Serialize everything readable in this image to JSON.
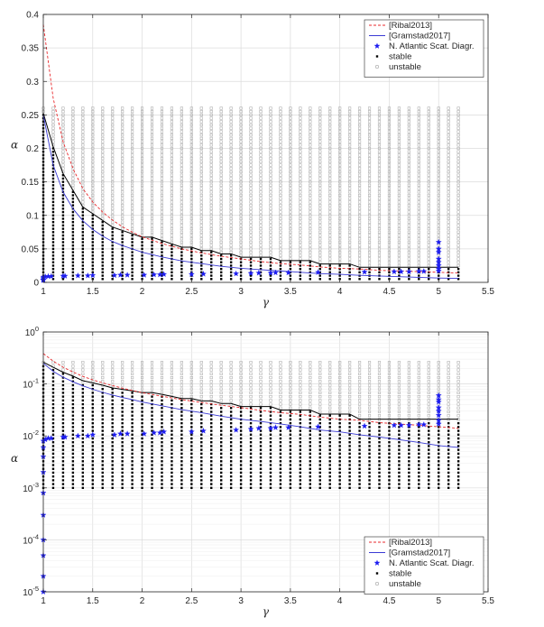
{
  "chart_data": [
    {
      "type": "scatter",
      "title": "",
      "xlabel": "γ",
      "ylabel": "α",
      "xlim": [
        1,
        5.5
      ],
      "ylim": [
        0,
        0.4
      ],
      "yscale": "linear",
      "grid": true,
      "legend_position": "top-right",
      "xticks": [
        "1",
        "1.5",
        "2",
        "2.5",
        "3",
        "3.5",
        "4",
        "4.5",
        "5",
        "5.5"
      ],
      "yticks": [
        "0",
        "0.05",
        "0.1",
        "0.15",
        "0.2",
        "0.25",
        "0.3",
        "0.35",
        "0.4"
      ],
      "grid_gamma": [
        1,
        1.1,
        1.2,
        1.3,
        1.4,
        1.5,
        1.6,
        1.7,
        1.8,
        1.9,
        2,
        2.1,
        2.2,
        2.3,
        2.4,
        2.5,
        2.6,
        2.7,
        2.8,
        2.9,
        3,
        3.1,
        3.2,
        3.3,
        3.4,
        3.5,
        3.6,
        3.7,
        3.8,
        3.9,
        4,
        4.1,
        4.2,
        4.3,
        4.4,
        4.5,
        4.6,
        4.7,
        4.8,
        4.9,
        5,
        5.1,
        5.2
      ],
      "grid_alpha_max": 0.26,
      "stability_boundary": [
        0.25,
        0.2,
        0.16,
        0.135,
        0.11,
        0.1,
        0.09,
        0.08,
        0.075,
        0.07,
        0.065,
        0.065,
        0.06,
        0.055,
        0.05,
        0.05,
        0.045,
        0.045,
        0.04,
        0.04,
        0.035,
        0.035,
        0.035,
        0.035,
        0.03,
        0.03,
        0.03,
        0.03,
        0.025,
        0.025,
        0.025,
        0.025,
        0.02,
        0.02,
        0.02,
        0.02,
        0.02,
        0.02,
        0.02,
        0.02,
        0.02,
        0.02,
        0.02
      ],
      "series": [
        {
          "name": "[Ribal2013]",
          "color": "#e8292c",
          "style": "dashed",
          "x": [
            1,
            1.1,
            1.2,
            1.3,
            1.4,
            1.5,
            1.6,
            1.7,
            1.8,
            1.9,
            2,
            2.2,
            2.4,
            2.6,
            2.8,
            3,
            3.2,
            3.4,
            3.6,
            3.8,
            4,
            4.2,
            4.4,
            4.6,
            4.8,
            5,
            5.2
          ],
          "y": [
            0.385,
            0.275,
            0.21,
            0.17,
            0.14,
            0.12,
            0.105,
            0.093,
            0.083,
            0.075,
            0.068,
            0.058,
            0.05,
            0.044,
            0.039,
            0.035,
            0.031,
            0.028,
            0.026,
            0.023,
            0.021,
            0.02,
            0.018,
            0.017,
            0.016,
            0.015,
            0.014
          ]
        },
        {
          "name": "[Gramstad2017]",
          "color": "#3a3ad4",
          "style": "solid",
          "x": [
            1,
            1.1,
            1.2,
            1.3,
            1.4,
            1.5,
            1.6,
            1.7,
            1.8,
            1.9,
            2,
            2.2,
            2.4,
            2.6,
            2.8,
            3,
            3.2,
            3.4,
            3.6,
            3.8,
            4,
            4.2,
            4.4,
            4.6,
            4.8,
            5,
            5.2
          ],
          "y": [
            0.25,
            0.175,
            0.135,
            0.11,
            0.092,
            0.079,
            0.069,
            0.061,
            0.055,
            0.05,
            0.045,
            0.038,
            0.032,
            0.028,
            0.024,
            0.021,
            0.019,
            0.017,
            0.015,
            0.013,
            0.012,
            0.0105,
            0.0095,
            0.0085,
            0.0075,
            0.0065,
            0.006
          ]
        },
        {
          "name": "N. Atlantic Scat. Diagr.",
          "color": "#1c1cf0",
          "marker": "star",
          "x": [
            1,
            1,
            1,
            1,
            1,
            1,
            1,
            1,
            1,
            1,
            1.02,
            1.05,
            1.08,
            1.2,
            1.22,
            1.35,
            1.45,
            1.5,
            1.72,
            1.78,
            1.85,
            2.02,
            2.12,
            2.18,
            2.22,
            2.5,
            2.62,
            2.95,
            3.1,
            3.18,
            3.3,
            3.35,
            3.48,
            3.78,
            4.25,
            4.55,
            4.62,
            4.7,
            4.8,
            4.85,
            5,
            5,
            5,
            5,
            5,
            5,
            5,
            5
          ],
          "y": [
            1e-05,
            2e-05,
            5e-05,
            0.0001,
            0.0003,
            0.0008,
            0.002,
            0.004,
            0.006,
            0.008,
            0.0085,
            0.009,
            0.009,
            0.0095,
            0.0095,
            0.01,
            0.01,
            0.0105,
            0.0105,
            0.011,
            0.011,
            0.011,
            0.0115,
            0.0115,
            0.012,
            0.012,
            0.0125,
            0.013,
            0.0135,
            0.014,
            0.014,
            0.0145,
            0.0145,
            0.015,
            0.0155,
            0.016,
            0.016,
            0.016,
            0.0165,
            0.0165,
            0.017,
            0.02,
            0.025,
            0.03,
            0.035,
            0.045,
            0.05,
            0.06
          ]
        },
        {
          "name": "stable",
          "color": "#000000",
          "marker": "filled-square"
        },
        {
          "name": "unstable",
          "color": "#9a9a9a",
          "marker": "open-square"
        }
      ]
    },
    {
      "type": "scatter",
      "title": "",
      "xlabel": "γ",
      "ylabel": "α",
      "xlim": [
        1,
        5.5
      ],
      "ylim": [
        1e-05,
        1
      ],
      "yscale": "log",
      "grid": true,
      "legend_position": "bottom-right",
      "xticks": [
        "1",
        "1.5",
        "2",
        "2.5",
        "3",
        "3.5",
        "4",
        "4.5",
        "5",
        "5.5"
      ],
      "yticks": [
        {
          "mant": "10",
          "exp": "-5"
        },
        {
          "mant": "10",
          "exp": "-4"
        },
        {
          "mant": "10",
          "exp": "-3"
        },
        {
          "mant": "10",
          "exp": "-2"
        },
        {
          "mant": "10",
          "exp": "-1"
        },
        {
          "mant": "10",
          "exp": "0"
        }
      ],
      "grid_alpha_min": 0.001,
      "grid_alpha_max": 0.26,
      "series_ref": "same series as first panel"
    }
  ],
  "legend": {
    "items": [
      {
        "label": "[Ribal2013]",
        "icon": "red-dashed-line"
      },
      {
        "label": "[Gramstad2017]",
        "icon": "blue-solid-line"
      },
      {
        "label": "N. Atlantic Scat. Diagr.",
        "icon": "blue-star"
      },
      {
        "label": "stable",
        "icon": "black-filled-square"
      },
      {
        "label": "unstable",
        "icon": "grey-open-square"
      }
    ]
  }
}
